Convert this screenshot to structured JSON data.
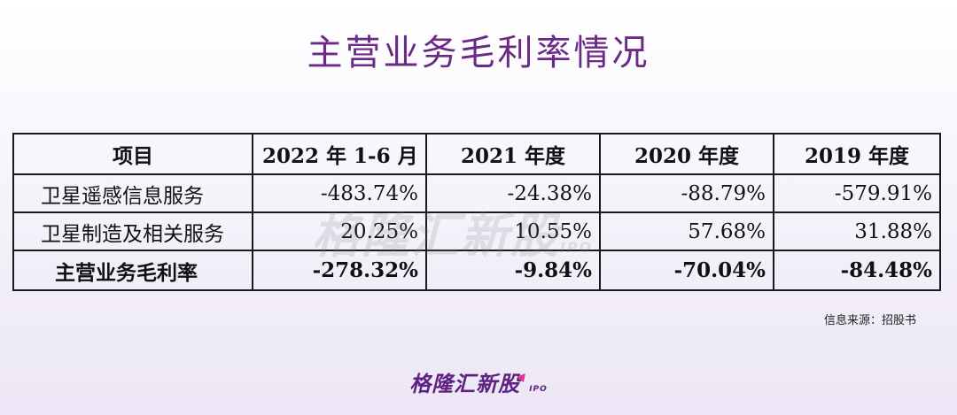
{
  "title": "主营业务毛利率情况",
  "table": {
    "headers": [
      "项目",
      "2022 年 1-6 月",
      "2021 年度",
      "2020 年度",
      "2019 年度"
    ],
    "rows": [
      {
        "label": "卫星遥感信息服务",
        "values": [
          "-483.74%",
          "-24.38%",
          "-88.79%",
          "-579.91%"
        ]
      },
      {
        "label": "卫星制造及相关服务",
        "values": [
          "20.25%",
          "10.55%",
          "57.68%",
          "31.88%"
        ]
      }
    ],
    "total": {
      "label": "主营业务毛利率",
      "values": [
        "-278.32%",
        "-9.84%",
        "-70.04%",
        "-84.48%"
      ]
    }
  },
  "watermark": {
    "text": "格隆汇新股",
    "suffix": "IPO"
  },
  "source": "信息来源：招股书",
  "logo": {
    "text": "格隆汇新股",
    "suffix": "IPO"
  },
  "colors": {
    "title": "#6a2a86",
    "logo": "#5e2380",
    "logo_accent": "#e0368e"
  }
}
